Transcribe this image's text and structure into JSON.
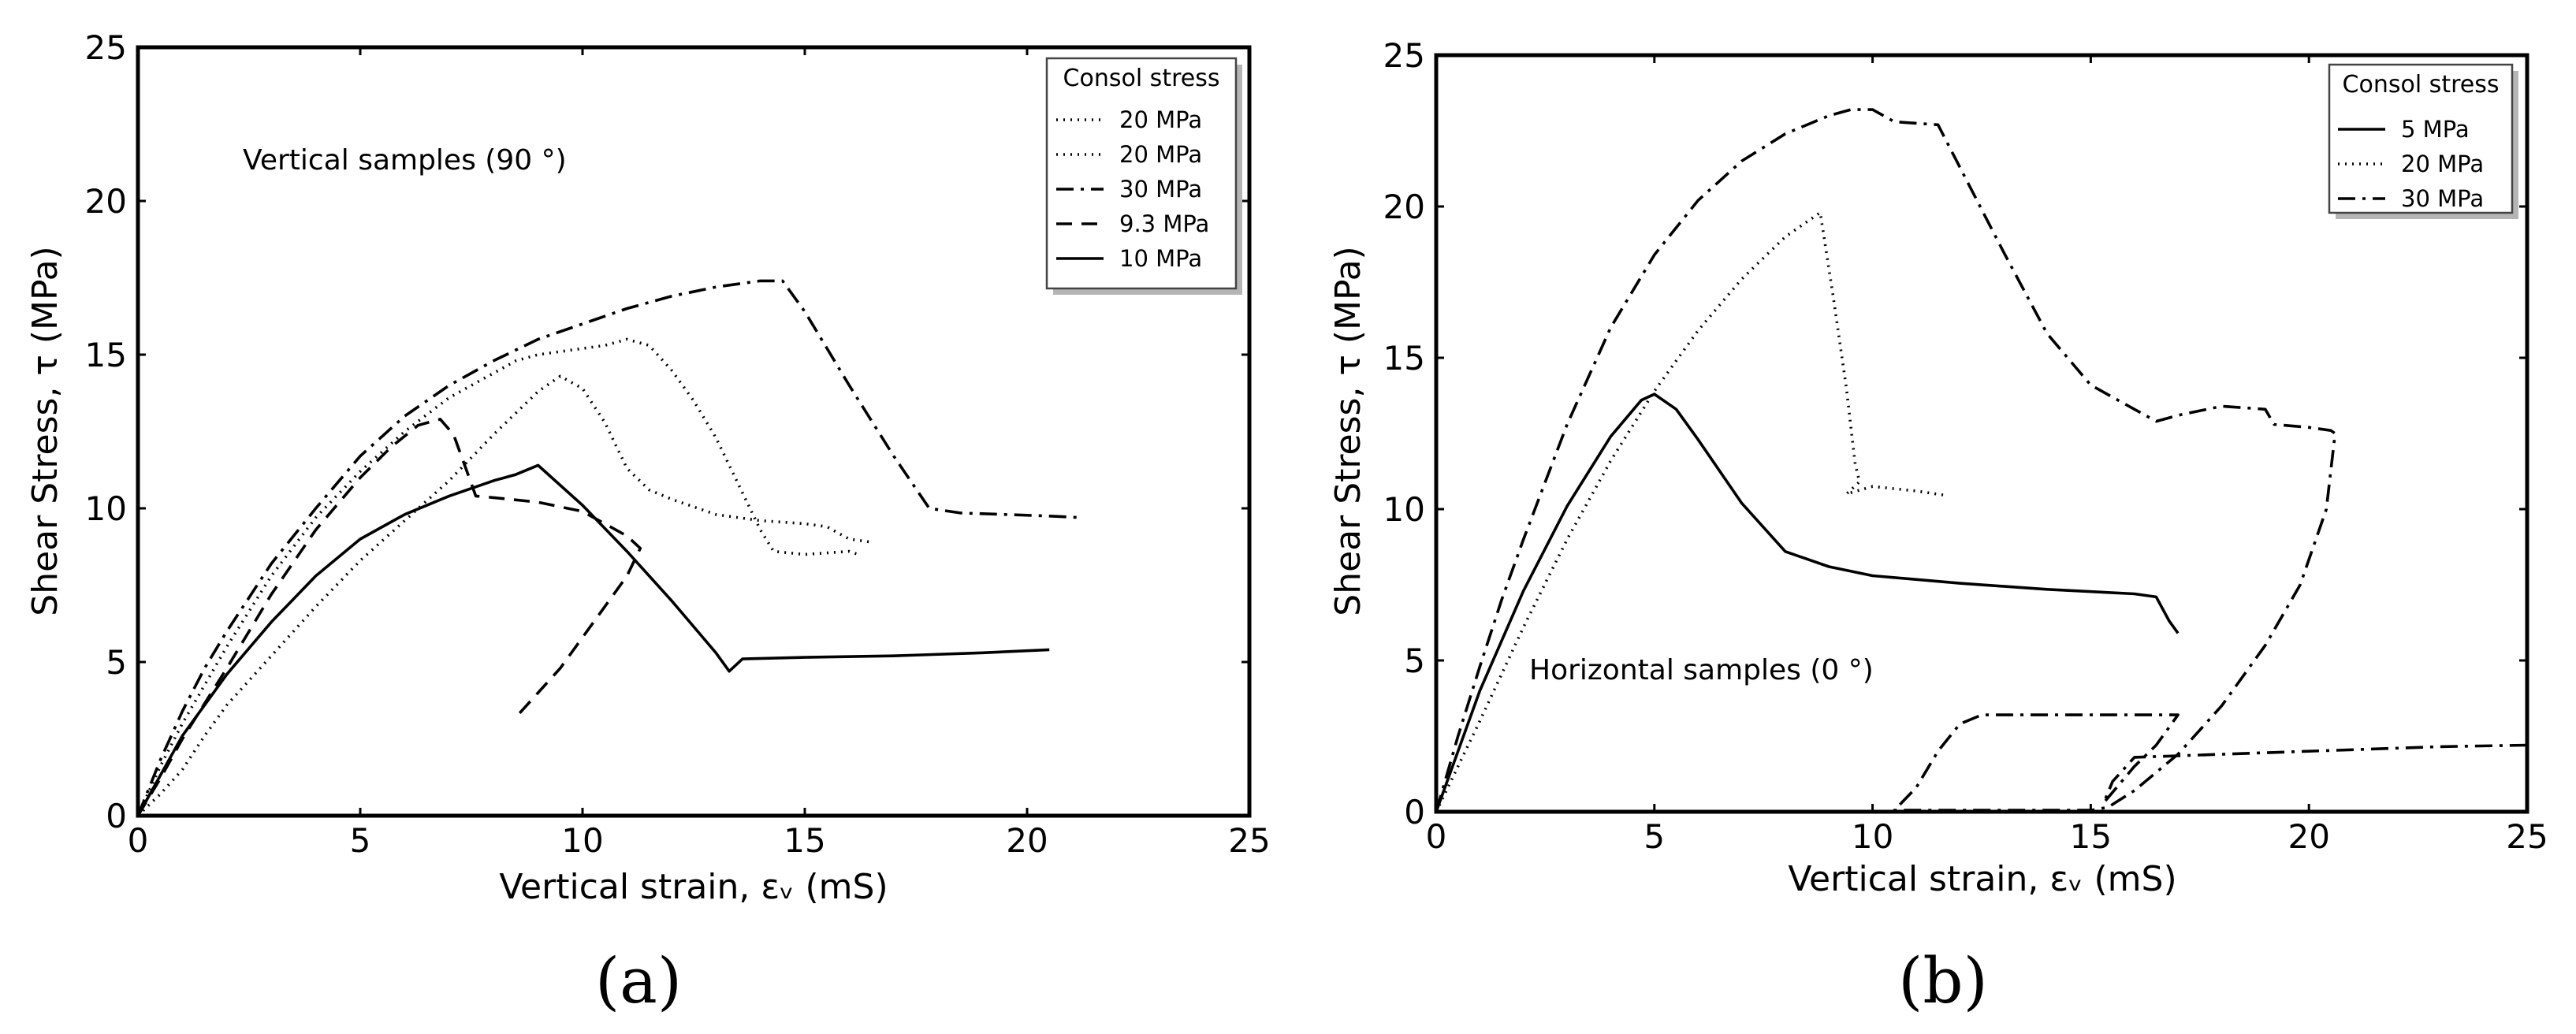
{
  "chart_data": [
    {
      "type": "line",
      "panel_label": "(a)",
      "annotation": "Vertical samples (90 °)",
      "xlabel": "Vertical strain, εᵥ (mS)",
      "ylabel": "Shear Stress, τ (MPa)",
      "xlim": [
        0,
        25
      ],
      "ylim": [
        0,
        25
      ],
      "xticks": [
        "0",
        "5",
        "10",
        "15",
        "20",
        "25"
      ],
      "yticks": [
        "0",
        "5",
        "10",
        "15",
        "20",
        "25"
      ],
      "legend": {
        "title": "Consol stress",
        "position": "top-right"
      },
      "series": [
        {
          "name": "20 MPa",
          "style": "dotted",
          "points": [
            [
              0,
              0
            ],
            [
              0.5,
              0.7
            ],
            [
              1,
              1.5
            ],
            [
              1.5,
              2.6
            ],
            [
              2,
              3.6
            ],
            [
              3,
              5.2
            ],
            [
              4,
              6.8
            ],
            [
              5,
              8.3
            ],
            [
              6,
              9.6
            ],
            [
              7,
              10.9
            ],
            [
              8,
              12.4
            ],
            [
              9,
              13.8
            ],
            [
              9.5,
              14.3
            ],
            [
              10,
              13.9
            ],
            [
              10.5,
              12.8
            ],
            [
              11,
              11.3
            ],
            [
              11.5,
              10.6
            ],
            [
              12,
              10.3
            ],
            [
              13,
              9.8
            ],
            [
              14,
              9.6
            ],
            [
              15,
              9.5
            ],
            [
              15.5,
              9.4
            ],
            [
              16,
              9.0
            ],
            [
              16.5,
              8.9
            ]
          ]
        },
        {
          "name": "20 MPa",
          "style": "dotted",
          "points": [
            [
              0,
              0
            ],
            [
              0.5,
              1.6
            ],
            [
              1,
              3.0
            ],
            [
              2,
              5.5
            ],
            [
              3,
              7.8
            ],
            [
              4,
              9.7
            ],
            [
              5,
              11.2
            ],
            [
              6,
              12.5
            ],
            [
              7,
              13.6
            ],
            [
              8,
              14.4
            ],
            [
              8.5,
              14.8
            ],
            [
              9,
              15.0
            ],
            [
              10,
              15.2
            ],
            [
              10.5,
              15.3
            ],
            [
              11,
              15.5
            ],
            [
              11.5,
              15.3
            ],
            [
              12,
              14.5
            ],
            [
              12.5,
              13.5
            ],
            [
              13,
              12.3
            ],
            [
              13.5,
              10.8
            ],
            [
              14,
              9.3
            ],
            [
              14.3,
              8.6
            ],
            [
              15,
              8.5
            ],
            [
              16,
              8.6
            ],
            [
              16.2,
              8.5
            ]
          ]
        },
        {
          "name": "30 MPa",
          "style": "dashdot",
          "points": [
            [
              0,
              0
            ],
            [
              0.5,
              1.8
            ],
            [
              1,
              3.4
            ],
            [
              1.5,
              4.8
            ],
            [
              2,
              6.0
            ],
            [
              3,
              8.2
            ],
            [
              4,
              10.0
            ],
            [
              5,
              11.7
            ],
            [
              6,
              13.0
            ],
            [
              7,
              14.0
            ],
            [
              8,
              14.8
            ],
            [
              9,
              15.5
            ],
            [
              10,
              16.0
            ],
            [
              11,
              16.5
            ],
            [
              12,
              16.9
            ],
            [
              13,
              17.2
            ],
            [
              14,
              17.4
            ],
            [
              14.5,
              17.4
            ],
            [
              15,
              16.4
            ],
            [
              16,
              14.0
            ],
            [
              17,
              11.7
            ],
            [
              17.8,
              10.0
            ],
            [
              18.5,
              9.85
            ],
            [
              19.5,
              9.8
            ],
            [
              20.5,
              9.75
            ],
            [
              21.2,
              9.7
            ]
          ]
        },
        {
          "name": "9.3 MPa",
          "style": "dashed",
          "points": [
            [
              0,
              0
            ],
            [
              0.5,
              1.2
            ],
            [
              1,
              2.5
            ],
            [
              2,
              4.8
            ],
            [
              3,
              7.2
            ],
            [
              4,
              9.3
            ],
            [
              5,
              11.0
            ],
            [
              5.7,
              12.0
            ],
            [
              6.3,
              12.7
            ],
            [
              6.8,
              12.9
            ],
            [
              7.1,
              12.4
            ],
            [
              7.4,
              11.2
            ],
            [
              7.6,
              10.4
            ],
            [
              8,
              10.35
            ],
            [
              9,
              10.2
            ],
            [
              10,
              9.9
            ],
            [
              10.5,
              9.5
            ],
            [
              11,
              9.1
            ],
            [
              11.3,
              8.7
            ],
            [
              11,
              7.8
            ],
            [
              10.5,
              6.8
            ],
            [
              10,
              5.8
            ],
            [
              9.5,
              4.8
            ],
            [
              9,
              4.0
            ],
            [
              8.5,
              3.2
            ]
          ]
        },
        {
          "name": "10 MPa",
          "style": "solid",
          "points": [
            [
              0,
              0
            ],
            [
              0.5,
              1.3
            ],
            [
              1,
              2.6
            ],
            [
              1.5,
              3.6
            ],
            [
              2,
              4.6
            ],
            [
              3,
              6.3
            ],
            [
              4,
              7.8
            ],
            [
              5,
              9.0
            ],
            [
              6,
              9.8
            ],
            [
              7,
              10.4
            ],
            [
              8,
              10.9
            ],
            [
              8.5,
              11.1
            ],
            [
              9,
              11.4
            ],
            [
              10,
              10.1
            ],
            [
              11,
              8.6
            ],
            [
              12,
              7.0
            ],
            [
              13,
              5.3
            ],
            [
              13.3,
              4.7
            ],
            [
              13.6,
              5.1
            ],
            [
              15,
              5.15
            ],
            [
              17,
              5.2
            ],
            [
              19,
              5.3
            ],
            [
              20.5,
              5.4
            ]
          ]
        }
      ]
    },
    {
      "type": "line",
      "panel_label": "(b)",
      "annotation": "Horizontal samples (0 °)",
      "xlabel": "Vertical strain, εᵥ (mS)",
      "ylabel": "Shear Stress, τ (MPa)",
      "xlim": [
        0,
        25
      ],
      "ylim": [
        0,
        25
      ],
      "xticks": [
        "0",
        "5",
        "10",
        "15",
        "20",
        "25"
      ],
      "yticks": [
        "0",
        "5",
        "10",
        "15",
        "20",
        "25"
      ],
      "legend": {
        "title": "Consol stress",
        "position": "top-right"
      },
      "series": [
        {
          "name": "5 MPa",
          "style": "solid",
          "points": [
            [
              0,
              0
            ],
            [
              0.5,
              2.0
            ],
            [
              1,
              4.0
            ],
            [
              2,
              7.3
            ],
            [
              3,
              10.1
            ],
            [
              4,
              12.4
            ],
            [
              4.7,
              13.6
            ],
            [
              5,
              13.8
            ],
            [
              5.5,
              13.3
            ],
            [
              6,
              12.3
            ],
            [
              7,
              10.2
            ],
            [
              8,
              8.6
            ],
            [
              9,
              8.1
            ],
            [
              10,
              7.8
            ],
            [
              12,
              7.55
            ],
            [
              14,
              7.35
            ],
            [
              16,
              7.2
            ],
            [
              16.5,
              7.1
            ],
            [
              16.8,
              6.3
            ],
            [
              17,
              5.9
            ]
          ]
        },
        {
          "name": "20 MPa",
          "style": "dotted",
          "points": [
            [
              0,
              0
            ],
            [
              0.5,
              1.5
            ],
            [
              1,
              3.0
            ],
            [
              2,
              6.1
            ],
            [
              3,
              9.0
            ],
            [
              4,
              11.6
            ],
            [
              5,
              13.9
            ],
            [
              6,
              15.9
            ],
            [
              7,
              17.6
            ],
            [
              8,
              19.0
            ],
            [
              8.8,
              19.8
            ],
            [
              9.1,
              17.0
            ],
            [
              9.4,
              14.0
            ],
            [
              9.6,
              11.5
            ],
            [
              9.7,
              10.9
            ],
            [
              9.4,
              10.5
            ],
            [
              10,
              10.75
            ],
            [
              11,
              10.6
            ],
            [
              11.7,
              10.45
            ]
          ]
        },
        {
          "name": "30 MPa",
          "style": "dashdot",
          "points": [
            [
              0,
              0
            ],
            [
              0.5,
              2.5
            ],
            [
              1,
              4.8
            ],
            [
              1.5,
              7.0
            ],
            [
              2,
              9.0
            ],
            [
              3,
              12.8
            ],
            [
              4,
              16.0
            ],
            [
              5,
              18.4
            ],
            [
              6,
              20.2
            ],
            [
              7,
              21.5
            ],
            [
              8,
              22.4
            ],
            [
              9,
              23.0
            ],
            [
              9.5,
              23.2
            ],
            [
              10,
              23.2
            ],
            [
              10.5,
              22.8
            ],
            [
              11.5,
              22.7
            ],
            [
              12,
              21.3
            ],
            [
              13,
              18.5
            ],
            [
              14,
              15.8
            ],
            [
              15,
              14.1
            ],
            [
              16,
              13.3
            ],
            [
              16.5,
              12.9
            ],
            [
              17,
              13.1
            ],
            [
              18,
              13.4
            ],
            [
              19,
              13.3
            ],
            [
              19.2,
              12.8
            ],
            [
              20,
              12.7
            ],
            [
              20.5,
              12.6
            ],
            [
              20.6,
              12.5
            ],
            [
              20.4,
              10.0
            ],
            [
              19.8,
              7.5
            ],
            [
              19,
              5.5
            ],
            [
              18,
              3.5
            ],
            [
              17,
              1.9
            ],
            [
              16,
              0.7
            ],
            [
              15.4,
              0.15
            ],
            [
              15,
              0.05
            ],
            [
              14,
              0.05
            ],
            [
              12,
              0.05
            ],
            [
              10.5,
              0.05
            ],
            [
              11,
              0.8
            ],
            [
              11.5,
              2.0
            ],
            [
              12,
              2.9
            ],
            [
              12.5,
              3.2
            ],
            [
              14,
              3.2
            ],
            [
              16,
              3.2
            ],
            [
              17,
              3.2
            ],
            [
              16.5,
              2.2
            ],
            [
              16,
              1.5
            ],
            [
              15.3,
              0.3
            ],
            [
              15.5,
              1.0
            ],
            [
              16,
              1.8
            ],
            [
              17,
              1.85
            ],
            [
              19,
              1.95
            ],
            [
              21,
              2.05
            ],
            [
              23,
              2.15
            ],
            [
              25,
              2.2
            ]
          ]
        }
      ]
    }
  ]
}
